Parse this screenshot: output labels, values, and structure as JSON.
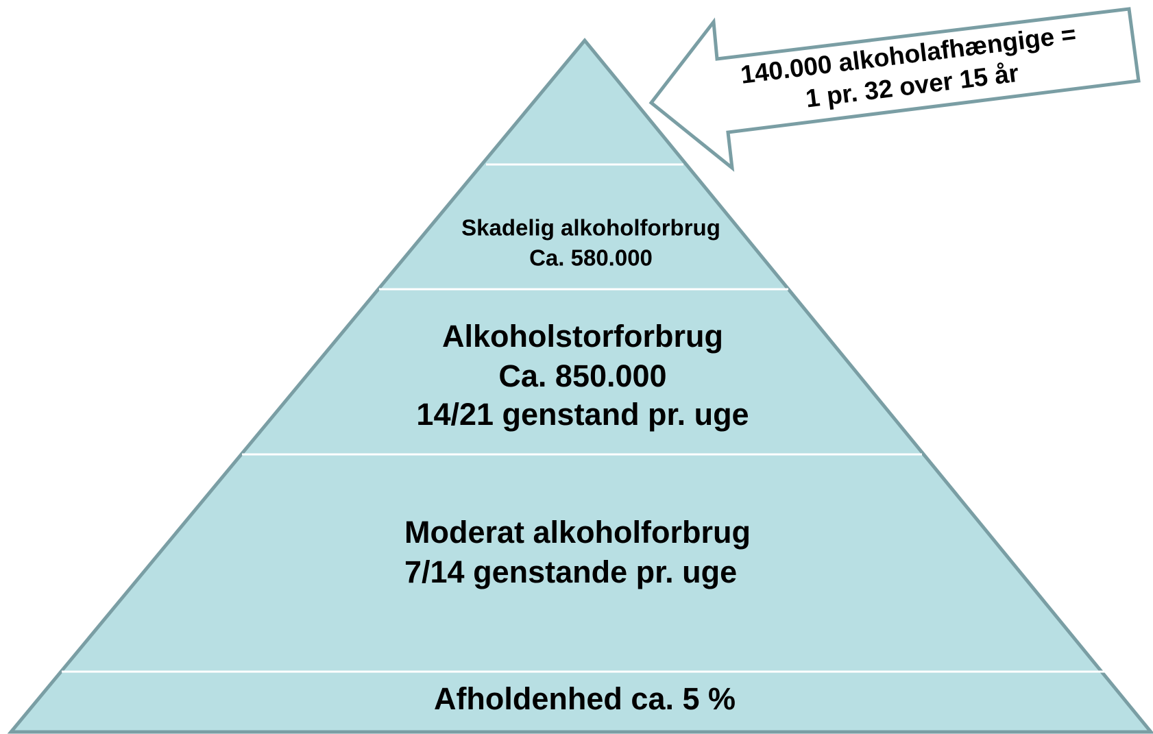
{
  "layers": [
    {
      "lines": [
        "Skadelig alkoholforbrug",
        "Ca. 580.000"
      ]
    },
    {
      "lines": [
        "Alkoholstorforbrug",
        "Ca. 850.000",
        "14/21 genstand pr. uge"
      ]
    },
    {
      "lines": [
        "Moderat alkoholforbrug",
        "7/14 genstande pr. uge"
      ]
    },
    {
      "lines": [
        "Afholdenhed ca. 5 %"
      ]
    }
  ],
  "callout": {
    "lines": [
      "140.000 alkoholafhængige =",
      "1 pr. 32 over 15 år"
    ]
  }
}
